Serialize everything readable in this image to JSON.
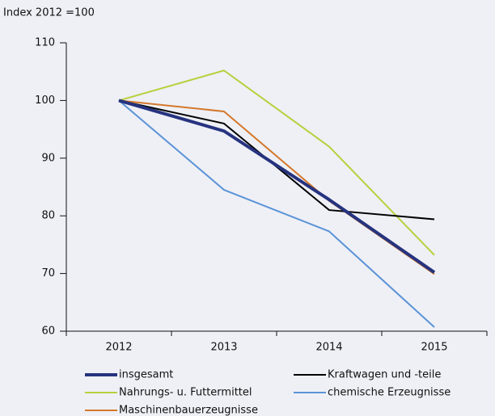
{
  "chart_data": {
    "type": "line",
    "y_label": "Index 2012 =100",
    "categories": [
      "2012",
      "2013",
      "2014",
      "2015"
    ],
    "series": [
      {
        "name": "insgesamt",
        "color": "#26337f",
        "width": 4,
        "values": [
          100,
          94.7,
          82.8,
          70.2
        ]
      },
      {
        "name": "Kraftwagen und -teile",
        "color": "#000000",
        "width": 2,
        "values": [
          100,
          96.0,
          81.0,
          79.4
        ]
      },
      {
        "name": "Nahrungs- u. Futtermittel",
        "color": "#b7d03c",
        "width": 2,
        "values": [
          100,
          105.2,
          92.0,
          73.2
        ]
      },
      {
        "name": "chemische Erzeugnisse",
        "color": "#5b93d6",
        "width": 2,
        "values": [
          100,
          84.5,
          77.3,
          60.7
        ]
      },
      {
        "name": "Maschinenbauerzeugnisse",
        "color": "#d4772a",
        "width": 2,
        "values": [
          100,
          98.1,
          82.6,
          69.9
        ]
      }
    ],
    "ylim": [
      60,
      110
    ],
    "yticks": [
      60,
      70,
      80,
      90,
      100,
      110
    ]
  }
}
